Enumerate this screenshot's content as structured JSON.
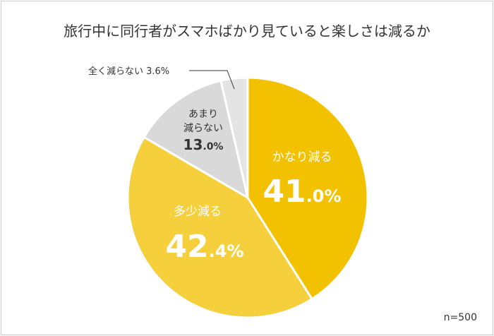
{
  "chart_data": {
    "type": "pie",
    "title": "旅行中に同行者がスマホばかり見ていると楽しさは減るか",
    "note": "n=500",
    "slices": [
      {
        "label": "かなり減る",
        "value": 41.0,
        "big": "41",
        "small": ".0%",
        "color": "#f2c200"
      },
      {
        "label": "多少減る",
        "value": 42.4,
        "big": "42",
        "small": ".4%",
        "color": "#f5cf3c"
      },
      {
        "label_lines": [
          "あまり",
          "減らない"
        ],
        "value": 13.0,
        "big": "13",
        "small": ".0%",
        "color": "#d9d9d9"
      },
      {
        "label": "全く減らない 3.6%",
        "value": 3.6,
        "color": "#e4e4e4"
      }
    ]
  }
}
